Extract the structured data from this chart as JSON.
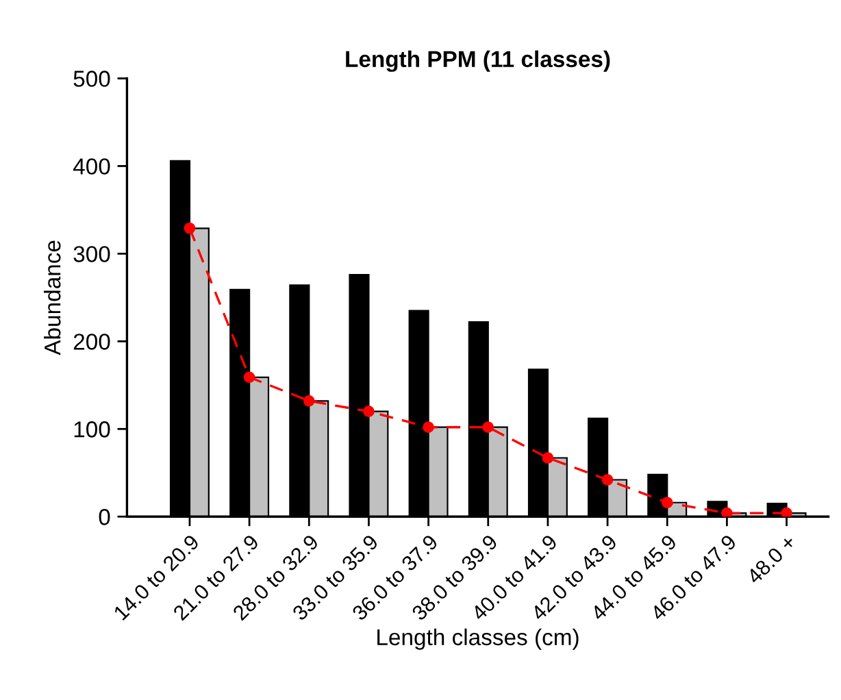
{
  "chart_data": {
    "type": "bar",
    "title": "Length PPM (11 classes)",
    "xlabel": "Length classes (cm)",
    "ylabel": "Abundance",
    "categories": [
      "14.0 to 20.9",
      "21.0 to 27.9",
      "28.0 to 32.9",
      "33.0 to 35.9",
      "36.0 to 37.9",
      "38.0 to 39.9",
      "40.0 to 41.9",
      "42.0 to 43.9",
      "44.0 to 45.9",
      "46.0 to 47.9",
      "48.0 +"
    ],
    "series": [
      {
        "color": "#000000",
        "values": [
          406,
          259,
          264,
          276,
          235,
          222,
          168,
          112,
          48,
          17,
          15
        ]
      },
      {
        "color": "#c0c0c0",
        "values": [
          329,
          159,
          132,
          120,
          102,
          102,
          67,
          42,
          16,
          4,
          4
        ]
      },
      {
        "type": "line",
        "color": "#ff0000",
        "values": [
          329,
          159,
          132,
          120,
          102,
          102,
          67,
          42,
          16,
          4,
          4
        ],
        "marker": "circle",
        "line_style": "dashed"
      }
    ],
    "ylim": [
      0,
      500
    ],
    "yticks": [
      0,
      100,
      200,
      300,
      400,
      500
    ],
    "grid": false,
    "legend": false
  }
}
